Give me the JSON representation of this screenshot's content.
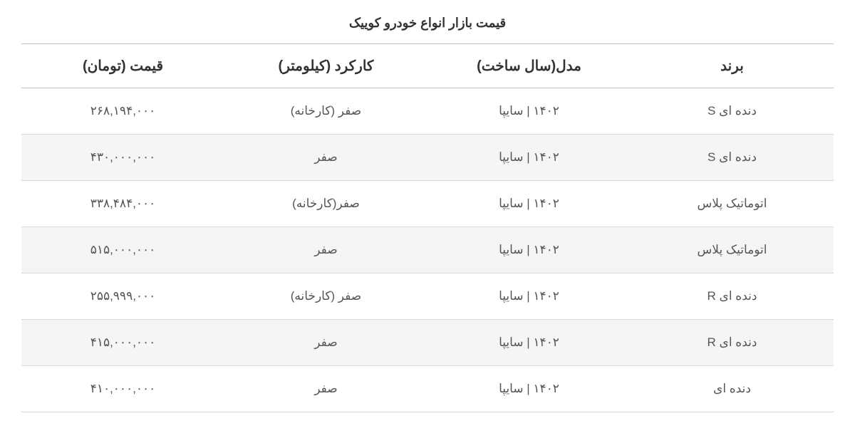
{
  "title": "قیمت بازار انواع خودرو کوییک",
  "table": {
    "type": "table",
    "background_color": "#ffffff",
    "alt_row_color": "#f5f5f5",
    "border_color": "#bfbfbf",
    "row_border_color": "#d9d9d9",
    "header_fontsize": 20,
    "cell_fontsize": 17,
    "text_color": "#333333",
    "cell_text_color": "#555555",
    "columns": [
      {
        "key": "brand",
        "label": "برند"
      },
      {
        "key": "model",
        "label": "مدل(سال ساخت)"
      },
      {
        "key": "mileage",
        "label": "کارکرد (کیلومتر)"
      },
      {
        "key": "price",
        "label": "قیمت (تومان)"
      }
    ],
    "rows": [
      {
        "brand": "دنده ای S",
        "model": "۱۴۰۲ | سایپا",
        "mileage": "صفر (کارخانه)",
        "price": "۲۶۸,۱۹۴,۰۰۰"
      },
      {
        "brand": "دنده ای S",
        "model": "۱۴۰۲ | سایپا",
        "mileage": "صفر",
        "price": "۴۳۰,۰۰۰,۰۰۰"
      },
      {
        "brand": "اتوماتیک پلاس",
        "model": "۱۴۰۲ | سایپا",
        "mileage": "صفر(کارخانه)",
        "price": "۳۳۸,۴۸۴,۰۰۰"
      },
      {
        "brand": "اتوماتیک پلاس",
        "model": "۱۴۰۲ | سایپا",
        "mileage": "صفر",
        "price": "۵۱۵,۰۰۰,۰۰۰"
      },
      {
        "brand": "دنده ای R",
        "model": "۱۴۰۲ | سایپا",
        "mileage": "صفر (کارخانه)",
        "price": "۲۵۵,۹۹۹,۰۰۰"
      },
      {
        "brand": "دنده ای R",
        "model": "۱۴۰۲ | سایپا",
        "mileage": "صفر",
        "price": "۴۱۵,۰۰۰,۰۰۰"
      },
      {
        "brand": "دنده ای",
        "model": "۱۴۰۲ | سایپا",
        "mileage": "صفر",
        "price": "۴۱۰,۰۰۰,۰۰۰"
      }
    ]
  }
}
